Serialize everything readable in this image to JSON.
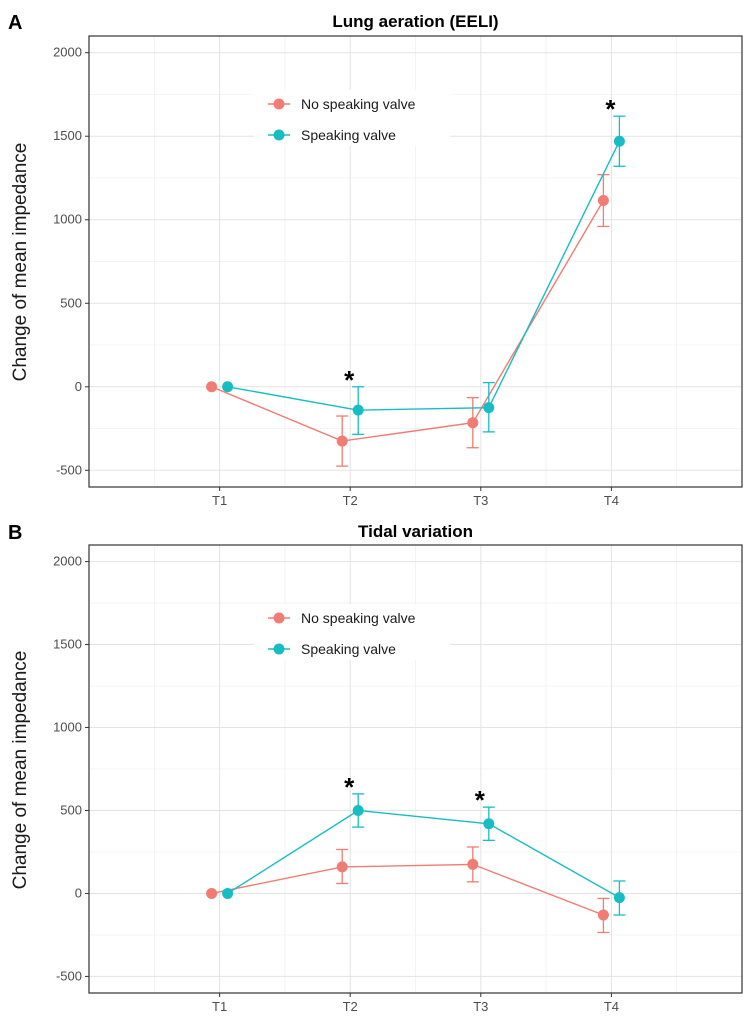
{
  "chart_data": [
    {
      "panel_label": "A",
      "type": "line",
      "title": "Lung aeration (EELI)",
      "xlabel": "",
      "ylabel": "Change of mean impedance",
      "categories": [
        "T1",
        "T2",
        "T3",
        "T4"
      ],
      "ylim": [
        -600,
        2100
      ],
      "yticks": [
        -500,
        0,
        500,
        1000,
        1500,
        2000
      ],
      "grid": true,
      "legend_position": "top-left",
      "series": [
        {
          "name": "No speaking valve",
          "color": "#F07C73",
          "values": [
            0,
            -325,
            -215,
            1115
          ],
          "lower": [
            0,
            -475,
            -365,
            960
          ],
          "upper": [
            0,
            -175,
            -65,
            1270
          ]
        },
        {
          "name": "Speaking valve",
          "color": "#18BDC4",
          "values": [
            0,
            -140,
            -125,
            1470
          ],
          "lower": [
            0,
            -285,
            -270,
            1320
          ],
          "upper": [
            0,
            0,
            25,
            1620
          ]
        }
      ],
      "annotations": [
        {
          "text": "*",
          "category": "T2",
          "y": 60
        },
        {
          "text": "*",
          "category": "T4",
          "y": 1680
        }
      ]
    },
    {
      "panel_label": "B",
      "type": "line",
      "title": "Tidal variation",
      "xlabel": "",
      "ylabel": "Change of mean impedance",
      "categories": [
        "T1",
        "T2",
        "T3",
        "T4"
      ],
      "ylim": [
        -600,
        2100
      ],
      "yticks": [
        -500,
        0,
        500,
        1000,
        1500,
        2000
      ],
      "grid": true,
      "legend_position": "top-left",
      "series": [
        {
          "name": "No speaking valve",
          "color": "#F07C73",
          "values": [
            0,
            160,
            175,
            -130
          ],
          "lower": [
            0,
            60,
            70,
            -235
          ],
          "upper": [
            0,
            265,
            280,
            -30
          ]
        },
        {
          "name": "Speaking valve",
          "color": "#18BDC4",
          "values": [
            0,
            500,
            420,
            -25
          ],
          "lower": [
            0,
            400,
            320,
            -130
          ],
          "upper": [
            0,
            600,
            520,
            75
          ]
        }
      ],
      "annotations": [
        {
          "text": "*",
          "category": "T2",
          "y": 660
        },
        {
          "text": "*",
          "category": "T3",
          "y": 580
        }
      ]
    }
  ]
}
